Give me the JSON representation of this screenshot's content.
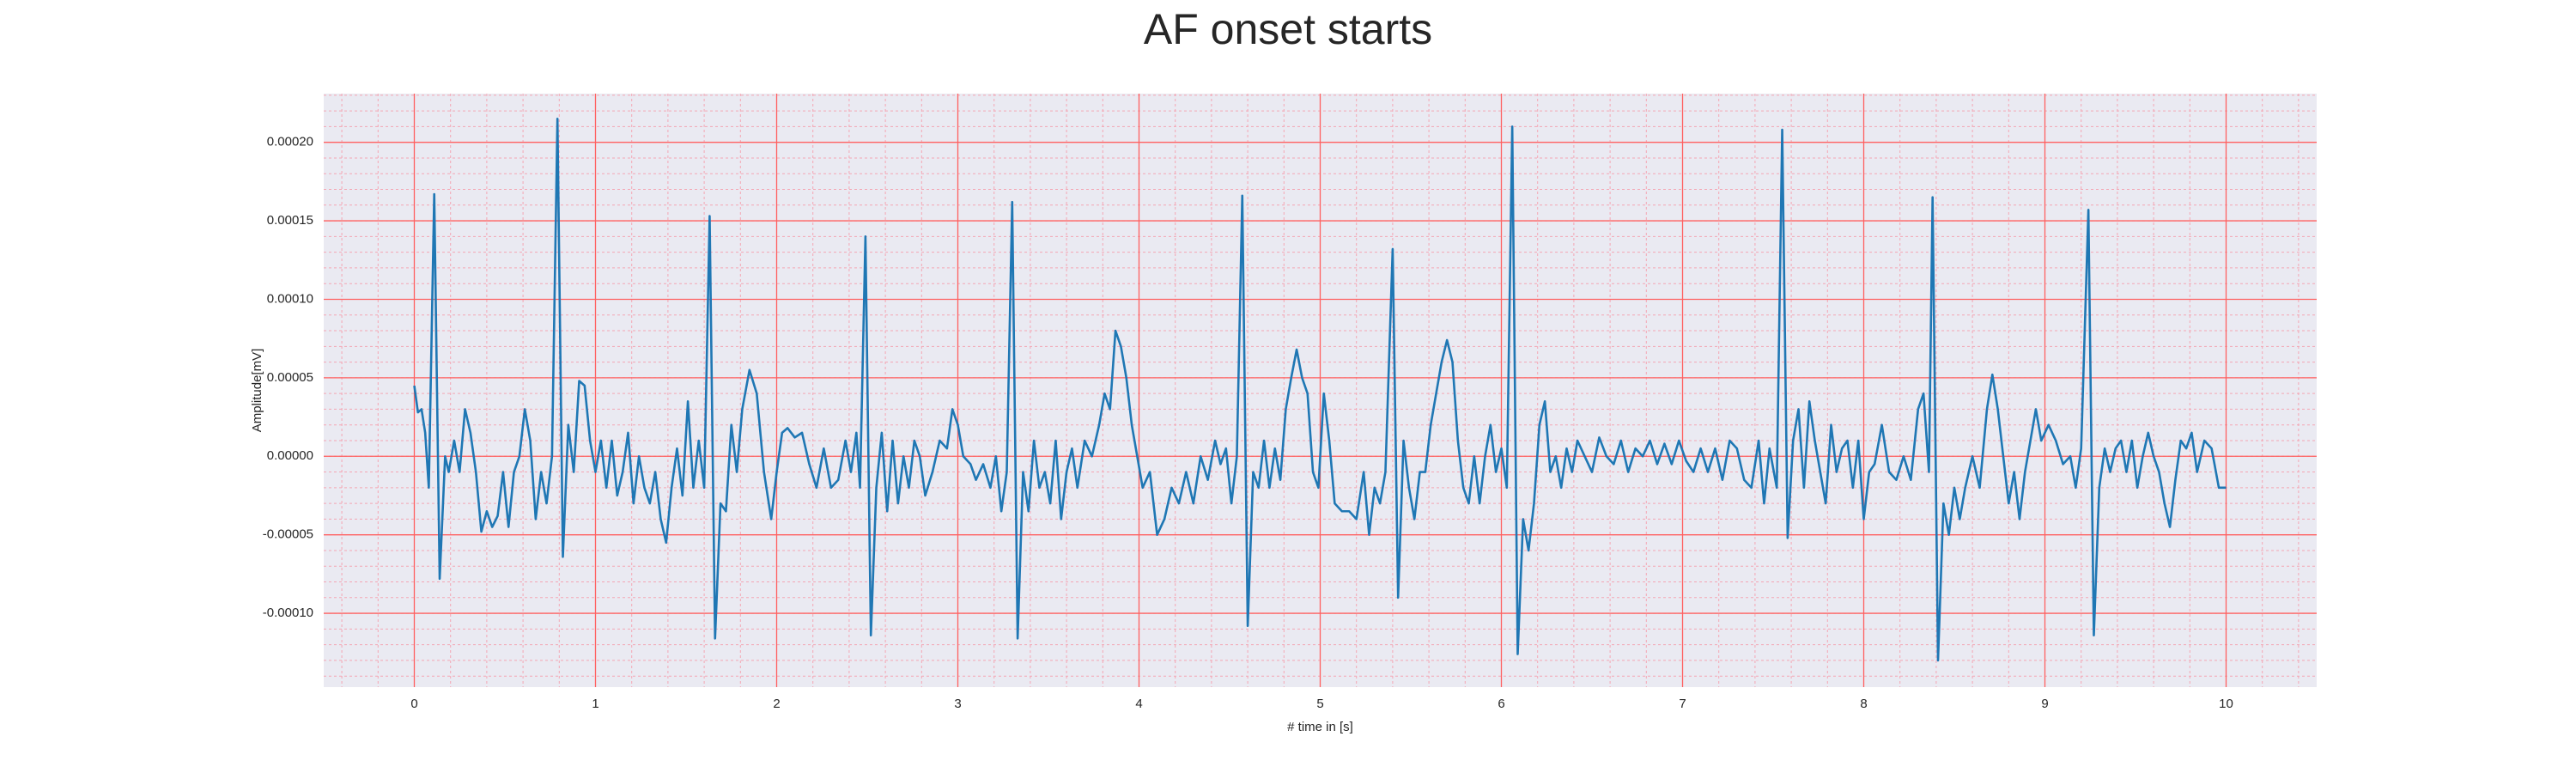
{
  "chart_data": {
    "type": "line",
    "title": "AF onset starts",
    "xlabel": "# time in [s]",
    "ylabel": "Amplitude[mV]",
    "color": "#1f77b4",
    "background": "#eaeaf2",
    "grid": true,
    "grid_color": "#ff6060",
    "minor_grid": true,
    "minor_grid_color": "#f4a6b4",
    "xminor": 0.2,
    "yminor": 1e-05,
    "xlim": [
      -0.5,
      10.5
    ],
    "ylim": [
      -0.000147,
      0.000231
    ],
    "xticks": [
      0,
      1,
      2,
      3,
      4,
      5,
      6,
      7,
      8,
      9,
      10
    ],
    "yticks": [
      {
        "value": -0.0001,
        "label": "-0.00010"
      },
      {
        "value": -5e-05,
        "label": "-0.00005"
      },
      {
        "value": 0,
        "label": "0.00000"
      },
      {
        "value": 5e-05,
        "label": "0.00005"
      },
      {
        "value": 0.0001,
        "label": "0.00010"
      },
      {
        "value": 0.00015,
        "label": "0.00015"
      },
      {
        "value": 0.0002,
        "label": "0.00020"
      }
    ],
    "x": [
      0,
      0.02,
      0.04,
      0.06,
      0.08,
      0.11,
      0.14,
      0.17,
      0.19,
      0.22,
      0.25,
      0.28,
      0.31,
      0.34,
      0.37,
      0.4,
      0.43,
      0.46,
      0.49,
      0.52,
      0.55,
      0.58,
      0.61,
      0.64,
      0.67,
      0.7,
      0.73,
      0.76,
      0.79,
      0.82,
      0.85,
      0.88,
      0.91,
      0.94,
      0.97,
      1.0,
      1.03,
      1.06,
      1.09,
      1.12,
      1.15,
      1.18,
      1.21,
      1.24,
      1.27,
      1.3,
      1.33,
      1.36,
      1.39,
      1.42,
      1.45,
      1.48,
      1.51,
      1.54,
      1.57,
      1.6,
      1.63,
      1.66,
      1.69,
      1.72,
      1.75,
      1.78,
      1.81,
      1.85,
      1.89,
      1.93,
      1.97,
      2.0,
      2.03,
      2.06,
      2.1,
      2.14,
      2.18,
      2.22,
      2.26,
      2.3,
      2.34,
      2.38,
      2.41,
      2.44,
      2.46,
      2.49,
      2.52,
      2.55,
      2.58,
      2.61,
      2.64,
      2.67,
      2.7,
      2.73,
      2.76,
      2.79,
      2.82,
      2.86,
      2.9,
      2.94,
      2.97,
      3.0,
      3.03,
      3.07,
      3.1,
      3.14,
      3.18,
      3.21,
      3.24,
      3.27,
      3.3,
      3.33,
      3.36,
      3.39,
      3.42,
      3.45,
      3.48,
      3.51,
      3.54,
      3.57,
      3.6,
      3.63,
      3.66,
      3.7,
      3.74,
      3.78,
      3.81,
      3.84,
      3.87,
      3.9,
      3.93,
      3.96,
      3.99,
      4.02,
      4.06,
      4.1,
      4.14,
      4.18,
      4.22,
      4.26,
      4.3,
      4.34,
      4.38,
      4.42,
      4.45,
      4.48,
      4.51,
      4.54,
      4.57,
      4.6,
      4.63,
      4.66,
      4.69,
      4.72,
      4.75,
      4.78,
      4.81,
      4.84,
      4.87,
      4.9,
      4.93,
      4.96,
      4.99,
      5.02,
      5.05,
      5.08,
      5.12,
      5.16,
      5.2,
      5.24,
      5.27,
      5.3,
      5.33,
      5.36,
      5.4,
      5.43,
      5.46,
      5.49,
      5.52,
      5.55,
      5.58,
      5.61,
      5.64,
      5.67,
      5.7,
      5.73,
      5.76,
      5.79,
      5.82,
      5.85,
      5.88,
      5.91,
      5.94,
      5.97,
      6.0,
      6.03,
      6.06,
      6.09,
      6.12,
      6.15,
      6.18,
      6.21,
      6.24,
      6.27,
      6.3,
      6.33,
      6.36,
      6.39,
      6.42,
      6.46,
      6.5,
      6.54,
      6.58,
      6.62,
      6.66,
      6.7,
      6.74,
      6.78,
      6.82,
      6.86,
      6.9,
      6.94,
      6.98,
      7.02,
      7.06,
      7.1,
      7.14,
      7.18,
      7.22,
      7.26,
      7.3,
      7.34,
      7.38,
      7.42,
      7.45,
      7.48,
      7.52,
      7.55,
      7.58,
      7.61,
      7.64,
      7.67,
      7.7,
      7.73,
      7.76,
      7.79,
      7.82,
      7.85,
      7.88,
      7.91,
      7.94,
      7.97,
      8.0,
      8.03,
      8.06,
      8.1,
      8.14,
      8.18,
      8.22,
      8.26,
      8.3,
      8.33,
      8.36,
      8.38,
      8.41,
      8.44,
      8.47,
      8.5,
      8.53,
      8.56,
      8.6,
      8.64,
      8.68,
      8.71,
      8.74,
      8.77,
      8.8,
      8.83,
      8.86,
      8.89,
      8.92,
      8.95,
      8.98,
      9.02,
      9.06,
      9.1,
      9.14,
      9.17,
      9.2,
      9.24,
      9.27,
      9.3,
      9.33,
      9.36,
      9.39,
      9.42,
      9.45,
      9.48,
      9.51,
      9.54,
      9.57,
      9.6,
      9.63,
      9.66,
      9.69,
      9.72,
      9.75,
      9.78,
      9.81,
      9.84,
      9.88,
      9.92,
      9.96,
      10.0
    ],
    "values": [
      4.5e-05,
      2.8e-05,
      3e-05,
      1.5e-05,
      -2e-05,
      0.000167,
      -7.8e-05,
      0,
      -1e-05,
      1e-05,
      -1e-05,
      3e-05,
      1.5e-05,
      -1e-05,
      -4.8e-05,
      -3.5e-05,
      -4.5e-05,
      -3.8e-05,
      -1e-05,
      -4.5e-05,
      -1e-05,
      0,
      3e-05,
      1e-05,
      -4e-05,
      -1e-05,
      -3e-05,
      0,
      0.000215,
      -6.4e-05,
      2e-05,
      -1e-05,
      4.8e-05,
      4.5e-05,
      1e-05,
      -1e-05,
      1e-05,
      -2e-05,
      1e-05,
      -2.5e-05,
      -1e-05,
      1.5e-05,
      -3e-05,
      0,
      -2e-05,
      -3e-05,
      -1e-05,
      -4e-05,
      -5.5e-05,
      -2e-05,
      5e-06,
      -2.5e-05,
      3.5e-05,
      -2e-05,
      1e-05,
      -2e-05,
      0.000153,
      -0.000116,
      -3e-05,
      -3.5e-05,
      2e-05,
      -1e-05,
      3e-05,
      5.5e-05,
      4e-05,
      -1e-05,
      -4e-05,
      -1e-05,
      1.5e-05,
      1.8e-05,
      1.2e-05,
      1.5e-05,
      -5e-06,
      -2e-05,
      5e-06,
      -2e-05,
      -1.5e-05,
      1e-05,
      -1e-05,
      1.5e-05,
      -2e-05,
      0.00014,
      -0.000114,
      -2e-05,
      1.5e-05,
      -3.5e-05,
      1e-05,
      -3e-05,
      0,
      -2e-05,
      1e-05,
      0,
      -2.5e-05,
      -1e-05,
      1e-05,
      5e-06,
      3e-05,
      2e-05,
      0,
      -5e-06,
      -1.5e-05,
      -5e-06,
      -2e-05,
      0,
      -3.5e-05,
      -1e-05,
      0.000162,
      -0.000116,
      -1e-05,
      -3.5e-05,
      1e-05,
      -2e-05,
      -1e-05,
      -3e-05,
      1e-05,
      -4e-05,
      -1e-05,
      5e-06,
      -2e-05,
      1e-05,
      0,
      2e-05,
      4e-05,
      3e-05,
      8e-05,
      7e-05,
      5e-05,
      2e-05,
      0,
      -2e-05,
      -1e-05,
      -5e-05,
      -4e-05,
      -2e-05,
      -3e-05,
      -1e-05,
      -3e-05,
      0,
      -1.5e-05,
      1e-05,
      -5e-06,
      5e-06,
      -3e-05,
      0,
      0.000166,
      -0.000108,
      -1e-05,
      -2e-05,
      1e-05,
      -2e-05,
      5e-06,
      -1.5e-05,
      3e-05,
      5e-05,
      6.8e-05,
      5e-05,
      4e-05,
      -1e-05,
      -2e-05,
      4e-05,
      1e-05,
      -3e-05,
      -3.5e-05,
      -3.5e-05,
      -4e-05,
      -1e-05,
      -5e-05,
      -2e-05,
      -3e-05,
      -1e-05,
      0.000132,
      -9e-05,
      1e-05,
      -2e-05,
      -4e-05,
      -1e-05,
      -1e-05,
      2e-05,
      4e-05,
      6e-05,
      7.4e-05,
      6e-05,
      1e-05,
      -2e-05,
      -3e-05,
      0,
      -3e-05,
      0,
      2e-05,
      -1e-05,
      5e-06,
      -2e-05,
      0.00021,
      -0.000126,
      -4e-05,
      -6e-05,
      -3e-05,
      2e-05,
      3.5e-05,
      -1e-05,
      0,
      -2e-05,
      5e-06,
      -1e-05,
      1e-05,
      0,
      -1e-05,
      1.2e-05,
      0,
      -5e-06,
      1e-05,
      -1e-05,
      5e-06,
      0,
      1e-05,
      -5e-06,
      8e-06,
      -5e-06,
      1e-05,
      -3e-06,
      -1e-05,
      5e-06,
      -1e-05,
      5e-06,
      -1.5e-05,
      1e-05,
      5e-06,
      -1.5e-05,
      -2e-05,
      1e-05,
      -3e-05,
      5e-06,
      -2e-05,
      0.000208,
      -5.2e-05,
      1e-05,
      3e-05,
      -2e-05,
      3.5e-05,
      1e-05,
      -1e-05,
      -3e-05,
      2e-05,
      -1e-05,
      5e-06,
      1e-05,
      -2e-05,
      1e-05,
      -4e-05,
      -1e-05,
      -5e-06,
      2e-05,
      -1e-05,
      -1.5e-05,
      0,
      -1.5e-05,
      3e-05,
      4e-05,
      -1e-05,
      0.000165,
      -0.00013,
      -3e-05,
      -5e-05,
      -2e-05,
      -4e-05,
      -2e-05,
      0,
      -2e-05,
      3e-05,
      5.2e-05,
      3e-05,
      0,
      -3e-05,
      -1e-05,
      -4e-05,
      -1e-05,
      1e-05,
      3e-05,
      1e-05,
      2e-05,
      1e-05,
      -5e-06,
      0,
      -2e-05,
      5e-06,
      0.000157,
      -0.000114,
      -2e-05,
      5e-06,
      -1e-05,
      5e-06,
      1e-05,
      -1e-05,
      1e-05,
      -2e-05,
      0,
      1.5e-05,
      0,
      -1e-05,
      -3e-05,
      -4.5e-05,
      -1.5e-05,
      1e-05,
      5e-06,
      1.5e-05,
      -1e-05,
      1e-05,
      5e-06,
      -2e-05,
      -2e-05
    ]
  }
}
